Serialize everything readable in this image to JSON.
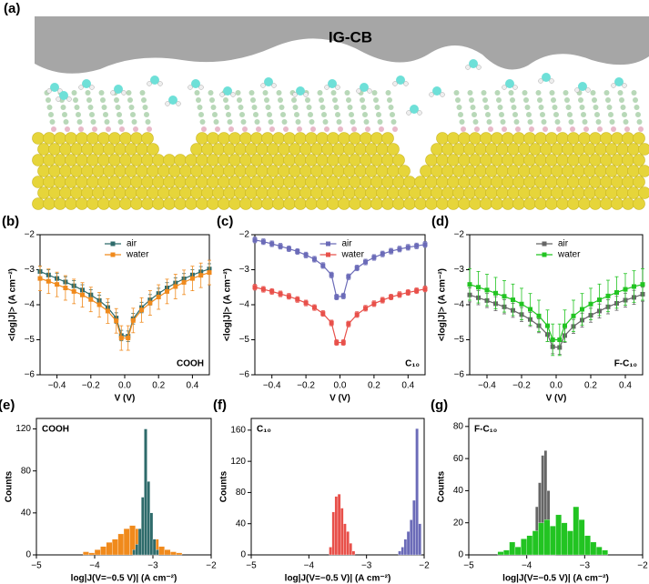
{
  "panel_a": {
    "label": "(a)",
    "surface_label": "IG-CB"
  },
  "chart_data": [
    {
      "type": "line",
      "label": "(b)",
      "annotation": "COOH",
      "xlabel": "V (V)",
      "ylabel": "<log|J|> (A cm⁻²)",
      "x": [
        -0.5,
        -0.45,
        -0.4,
        -0.35,
        -0.3,
        -0.25,
        -0.2,
        -0.15,
        -0.1,
        -0.05,
        -0.02,
        0.02,
        0.05,
        0.1,
        0.15,
        0.2,
        0.25,
        0.3,
        0.35,
        0.4,
        0.45,
        0.5
      ],
      "xlim": [
        -0.5,
        0.5
      ],
      "xticks": [
        {
          "value": -0.4,
          "label": "−0.4"
        },
        {
          "value": -0.2,
          "label": "−0.2"
        },
        {
          "value": 0,
          "label": "0.0"
        },
        {
          "value": 0.2,
          "label": "0.2"
        },
        {
          "value": 0.4,
          "label": "0.4"
        }
      ],
      "ylim": [
        -6,
        -2
      ],
      "yticks": [
        {
          "value": -6,
          "label": "−6"
        },
        {
          "value": -5,
          "label": "−5"
        },
        {
          "value": -4,
          "label": "−4"
        },
        {
          "value": -3,
          "label": "−3"
        },
        {
          "value": -2,
          "label": "−2"
        }
      ],
      "legend": "upper center",
      "series": [
        {
          "name": "air",
          "color": "#2e6b6b",
          "values": [
            -3.05,
            -3.15,
            -3.25,
            -3.35,
            -3.46,
            -3.58,
            -3.72,
            -3.88,
            -4.08,
            -4.38,
            -4.88,
            -4.9,
            -4.4,
            -4.08,
            -3.86,
            -3.68,
            -3.52,
            -3.38,
            -3.26,
            -3.15,
            -3.06,
            -2.98
          ],
          "errors": [
            0.15,
            0.15,
            0.15,
            0.15,
            0.15,
            0.15,
            0.15,
            0.15,
            0.15,
            0.15,
            0.15,
            0.15,
            0.15,
            0.15,
            0.15,
            0.15,
            0.15,
            0.15,
            0.15,
            0.15,
            0.15,
            0.15
          ]
        },
        {
          "name": "water",
          "color": "#f08a1c",
          "values": [
            -3.25,
            -3.33,
            -3.42,
            -3.52,
            -3.62,
            -3.72,
            -3.85,
            -4.0,
            -4.18,
            -4.46,
            -4.95,
            -4.95,
            -4.45,
            -4.15,
            -3.95,
            -3.78,
            -3.62,
            -3.48,
            -3.36,
            -3.25,
            -3.16,
            -3.08
          ],
          "errors": [
            0.35,
            0.35,
            0.35,
            0.35,
            0.35,
            0.35,
            0.35,
            0.35,
            0.35,
            0.35,
            0.35,
            0.35,
            0.35,
            0.35,
            0.35,
            0.35,
            0.35,
            0.35,
            0.35,
            0.35,
            0.35,
            0.35
          ]
        }
      ]
    },
    {
      "type": "line",
      "label": "(c)",
      "annotation": "C₁₀",
      "xlabel": "V (V)",
      "ylabel": "<log|J|> (A cm⁻²)",
      "x": [
        -0.5,
        -0.45,
        -0.4,
        -0.35,
        -0.3,
        -0.25,
        -0.2,
        -0.15,
        -0.1,
        -0.05,
        -0.02,
        0.02,
        0.05,
        0.1,
        0.15,
        0.2,
        0.25,
        0.3,
        0.35,
        0.4,
        0.45,
        0.5
      ],
      "xlim": [
        -0.5,
        0.5
      ],
      "xticks": [
        {
          "value": -0.4,
          "label": "−0.4"
        },
        {
          "value": -0.2,
          "label": "−0.2"
        },
        {
          "value": 0,
          "label": "0.0"
        },
        {
          "value": 0.2,
          "label": "0.2"
        },
        {
          "value": 0.4,
          "label": "0.4"
        }
      ],
      "ylim": [
        -6,
        -2
      ],
      "yticks": [
        {
          "value": -6,
          "label": "−6"
        },
        {
          "value": -5,
          "label": "−5"
        },
        {
          "value": -4,
          "label": "−4"
        },
        {
          "value": -3,
          "label": "−3"
        },
        {
          "value": -2,
          "label": "−2"
        }
      ],
      "legend": "upper center",
      "series": [
        {
          "name": "air",
          "color": "#6b6bb8",
          "values": [
            -2.15,
            -2.2,
            -2.26,
            -2.33,
            -2.4,
            -2.48,
            -2.58,
            -2.7,
            -2.88,
            -3.15,
            -3.78,
            -3.75,
            -3.2,
            -2.95,
            -2.78,
            -2.65,
            -2.55,
            -2.47,
            -2.41,
            -2.36,
            -2.32,
            -2.28
          ],
          "errors": [
            0.08,
            0.08,
            0.08,
            0.08,
            0.08,
            0.08,
            0.08,
            0.08,
            0.08,
            0.08,
            0.08,
            0.08,
            0.08,
            0.08,
            0.08,
            0.08,
            0.08,
            0.08,
            0.08,
            0.08,
            0.08,
            0.08
          ]
        },
        {
          "name": "water",
          "color": "#e8504a",
          "values": [
            -3.5,
            -3.56,
            -3.62,
            -3.69,
            -3.76,
            -3.85,
            -3.95,
            -4.08,
            -4.25,
            -4.52,
            -5.08,
            -5.08,
            -4.55,
            -4.28,
            -4.1,
            -3.97,
            -3.87,
            -3.78,
            -3.71,
            -3.65,
            -3.6,
            -3.55
          ],
          "errors": [
            0.08,
            0.08,
            0.08,
            0.08,
            0.08,
            0.08,
            0.08,
            0.08,
            0.08,
            0.08,
            0.08,
            0.08,
            0.08,
            0.08,
            0.08,
            0.08,
            0.08,
            0.08,
            0.08,
            0.08,
            0.08,
            0.08
          ]
        }
      ]
    },
    {
      "type": "line",
      "label": "(d)",
      "annotation": "F-C₁₀",
      "xlabel": "V (V)",
      "ylabel": "<log|J|> (A cm⁻²)",
      "x": [
        -0.5,
        -0.45,
        -0.4,
        -0.35,
        -0.3,
        -0.25,
        -0.2,
        -0.15,
        -0.1,
        -0.05,
        -0.02,
        0.02,
        0.05,
        0.1,
        0.15,
        0.2,
        0.25,
        0.3,
        0.35,
        0.4,
        0.45,
        0.5
      ],
      "xlim": [
        -0.5,
        0.5
      ],
      "xticks": [
        {
          "value": -0.4,
          "label": "−0.4"
        },
        {
          "value": -0.2,
          "label": "−0.2"
        },
        {
          "value": 0,
          "label": "0.0"
        },
        {
          "value": 0.2,
          "label": "0.2"
        },
        {
          "value": 0.4,
          "label": "0.4"
        }
      ],
      "ylim": [
        -6,
        -2
      ],
      "yticks": [
        {
          "value": -6,
          "label": "−6"
        },
        {
          "value": -5,
          "label": "−5"
        },
        {
          "value": -4,
          "label": "−4"
        },
        {
          "value": -3,
          "label": "−3"
        },
        {
          "value": -2,
          "label": "−2"
        }
      ],
      "legend": "upper center",
      "series": [
        {
          "name": "air",
          "color": "#666666",
          "values": [
            -3.72,
            -3.8,
            -3.88,
            -3.97,
            -4.06,
            -4.16,
            -4.28,
            -4.42,
            -4.6,
            -4.85,
            -5.2,
            -5.22,
            -4.88,
            -4.62,
            -4.44,
            -4.3,
            -4.18,
            -4.06,
            -3.96,
            -3.87,
            -3.79,
            -3.7
          ],
          "errors": [
            0.2,
            0.2,
            0.2,
            0.2,
            0.2,
            0.2,
            0.2,
            0.2,
            0.2,
            0.2,
            0.2,
            0.2,
            0.2,
            0.2,
            0.2,
            0.2,
            0.2,
            0.2,
            0.2,
            0.2,
            0.2,
            0.2
          ]
        },
        {
          "name": "water",
          "color": "#22c422",
          "values": [
            -3.42,
            -3.5,
            -3.58,
            -3.67,
            -3.76,
            -3.86,
            -3.98,
            -4.13,
            -4.32,
            -4.6,
            -5.0,
            -5.0,
            -4.6,
            -4.32,
            -4.13,
            -3.98,
            -3.86,
            -3.75,
            -3.65,
            -3.56,
            -3.48,
            -3.42
          ],
          "errors": [
            0.45,
            0.45,
            0.45,
            0.45,
            0.45,
            0.45,
            0.45,
            0.45,
            0.45,
            0.45,
            0.45,
            0.45,
            0.45,
            0.45,
            0.45,
            0.45,
            0.45,
            0.45,
            0.45,
            0.45,
            0.45,
            0.45
          ]
        }
      ]
    },
    {
      "type": "histogram",
      "label": "(e)",
      "annotation": "COOH",
      "xlabel": "log|J(V=−0.5 V)| (A cm⁻²)",
      "ylabel": "Counts",
      "xlim": [
        -5,
        -2
      ],
      "xticks": [
        {
          "value": -5,
          "label": "−5"
        },
        {
          "value": -4,
          "label": "−4"
        },
        {
          "value": -3,
          "label": "−3"
        },
        {
          "value": -2,
          "label": "−2"
        }
      ],
      "ylim": [
        0,
        130
      ],
      "yticks": [
        0,
        40,
        80,
        120
      ],
      "series": [
        {
          "color": "#f08a1c",
          "bins": [
            -4.2,
            -4.1,
            -4.0,
            -3.9,
            -3.8,
            -3.7,
            -3.6,
            -3.5,
            -3.4,
            -3.3,
            -3.2,
            -3.1,
            -3.0,
            -2.9,
            -2.8,
            -2.7,
            -2.6,
            -2.5
          ],
          "counts": [
            3,
            2,
            5,
            8,
            12,
            15,
            20,
            25,
            28,
            25,
            30,
            22,
            15,
            8,
            5,
            3,
            2
          ]
        },
        {
          "color": "#2e6b6b",
          "bins": [
            -3.35,
            -3.3,
            -3.25,
            -3.2,
            -3.15,
            -3.1,
            -3.05,
            -3.0,
            -2.95,
            -2.9
          ],
          "counts": [
            5,
            10,
            25,
            55,
            120,
            70,
            40,
            15,
            5
          ]
        }
      ]
    },
    {
      "type": "histogram",
      "label": "(f)",
      "annotation": "C₁₀",
      "xlabel": "log|J(V=−0.5 V)| (A cm⁻²)",
      "ylabel": "Counts",
      "xlim": [
        -5,
        -2
      ],
      "xticks": [
        {
          "value": -5,
          "label": "−5"
        },
        {
          "value": -4,
          "label": "−4"
        },
        {
          "value": -3,
          "label": "−3"
        },
        {
          "value": -2,
          "label": "−2"
        }
      ],
      "ylim": [
        0,
        175
      ],
      "yticks": [
        0,
        40,
        80,
        120,
        160
      ],
      "series": [
        {
          "color": "#e8504a",
          "bins": [
            -3.65,
            -3.6,
            -3.55,
            -3.5,
            -3.45,
            -3.4,
            -3.35,
            -3.3,
            -3.25,
            -3.2
          ],
          "counts": [
            10,
            55,
            75,
            78,
            60,
            40,
            30,
            15,
            5
          ]
        },
        {
          "color": "#6b6bb8",
          "bins": [
            -2.45,
            -2.4,
            -2.35,
            -2.3,
            -2.25,
            -2.2,
            -2.15,
            -2.1,
            -2.05
          ],
          "counts": [
            5,
            10,
            20,
            30,
            45,
            70,
            162,
            40
          ]
        }
      ]
    },
    {
      "type": "histogram",
      "label": "(g)",
      "annotation": "F-C₁₀",
      "xlabel": "log|J(V=−0.5 V)| (A cm⁻²)",
      "ylabel": "Counts",
      "xlim": [
        -5,
        -2
      ],
      "xticks": [
        {
          "value": -5,
          "label": "−5"
        },
        {
          "value": -4,
          "label": "−4"
        },
        {
          "value": -3,
          "label": "−3"
        },
        {
          "value": -2,
          "label": "−2"
        }
      ],
      "ylim": [
        0,
        85
      ],
      "yticks": [
        0,
        20,
        40,
        60,
        80
      ],
      "series": [
        {
          "color": "#666666",
          "bins": [
            -4.0,
            -3.95,
            -3.9,
            -3.85,
            -3.8,
            -3.75,
            -3.7,
            -3.65,
            -3.6,
            -3.55,
            -3.5
          ],
          "counts": [
            3,
            8,
            15,
            30,
            45,
            62,
            65,
            40,
            15,
            5
          ]
        },
        {
          "color": "#22c422",
          "bins": [
            -4.5,
            -4.4,
            -4.3,
            -4.2,
            -4.1,
            -4.0,
            -3.9,
            -3.8,
            -3.7,
            -3.6,
            -3.5,
            -3.4,
            -3.3,
            -3.2,
            -3.1,
            -3.0,
            -2.9,
            -2.8,
            -2.7,
            -2.6
          ],
          "counts": [
            2,
            3,
            8,
            5,
            10,
            12,
            15,
            20,
            22,
            18,
            25,
            20,
            15,
            30,
            22,
            12,
            8,
            5,
            3
          ]
        }
      ]
    }
  ]
}
